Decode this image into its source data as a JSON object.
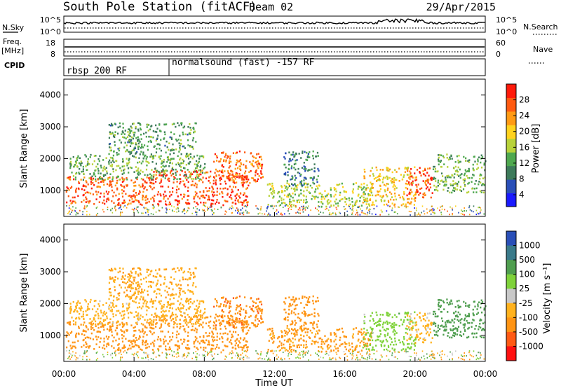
{
  "header": {
    "station": "South Pole Station (fitACF)",
    "beam": "Beam 02",
    "date": "29/Apr/2015"
  },
  "panels": {
    "nsky_label": "N.Sky",
    "nsearch_label": "N.Search",
    "nsky_ticks": [
      "10^5",
      "10^0"
    ],
    "nsearch_ticks": [
      "10^5",
      "10^0"
    ],
    "freq_label_1": "Freq.",
    "freq_label_2": "[MHz]",
    "freq_ticks": [
      "18",
      "8"
    ],
    "nave_label": "Nave",
    "nave_ticks": [
      "60",
      "0"
    ],
    "cpid_label": "CPID",
    "cpid_segments": [
      {
        "label": "rbsp 200 RF",
        "start_h": 0
      },
      {
        "label": "normalsound (fast) -157 RF",
        "start_h": 6
      }
    ]
  },
  "axes": {
    "ylabel": "Slant Range [km]",
    "xlabel": "Time UT",
    "yticks": [
      "1000",
      "2000",
      "3000",
      "4000"
    ],
    "xticks": [
      "00:00",
      "04:00",
      "08:00",
      "12:00",
      "16:00",
      "20:00",
      "00:00"
    ]
  },
  "colors": {
    "power": [
      "#1a1aff",
      "#2a4fb8",
      "#3d7a5a",
      "#4fa84f",
      "#b8d23a",
      "#ffd21e",
      "#ff9a14",
      "#ff5a10",
      "#ff1a0a"
    ],
    "velocity": [
      "#ff1010",
      "#ff5a14",
      "#ff9414",
      "#ffb21e",
      "#c8c8c8",
      "#7fd23a",
      "#4f9e4f",
      "#3a7a8a",
      "#2a4fb8"
    ]
  },
  "chart_data": {
    "type": "heatmap",
    "x_range_hours": [
      0,
      24
    ],
    "y_range_km": [
      180,
      4500
    ],
    "power_colorbar": {
      "label": "Power [dB]",
      "ticks": [
        "4",
        "8",
        "12",
        "16",
        "20",
        "24",
        "28"
      ]
    },
    "velocity_colorbar": {
      "label": "Velocity [m s⁻¹]",
      "ticks": [
        "1000",
        "500",
        "100",
        "25",
        "-25",
        "-100",
        "-500",
        "-1000"
      ]
    },
    "regions": [
      {
        "t0": 0.1,
        "t1": 5.0,
        "r0": 500,
        "r1": 1400,
        "power": 26,
        "velocity": -300
      },
      {
        "t0": 5.0,
        "t1": 10.5,
        "r0": 500,
        "r1": 1600,
        "power": 27,
        "velocity": -250
      },
      {
        "t0": 8.5,
        "t1": 11.3,
        "r0": 1200,
        "r1": 2200,
        "power": 25,
        "velocity": -400
      },
      {
        "t0": 0.3,
        "t1": 8.0,
        "r0": 1300,
        "r1": 2100,
        "power": 14,
        "velocity": -60
      },
      {
        "t0": 2.5,
        "t1": 7.5,
        "r0": 2100,
        "r1": 3100,
        "power": 12,
        "velocity": -90
      },
      {
        "t0": 11.5,
        "t1": 17.5,
        "r0": 450,
        "r1": 1200,
        "power": 16,
        "velocity": -120
      },
      {
        "t0": 17.0,
        "t1": 20.0,
        "r0": 500,
        "r1": 1700,
        "power": 20,
        "velocity": 60
      },
      {
        "t0": 19.5,
        "t1": 21.0,
        "r0": 700,
        "r1": 1700,
        "power": 27,
        "velocity": -40
      },
      {
        "t0": 21.0,
        "t1": 24.0,
        "r0": 900,
        "r1": 2100,
        "power": 14,
        "velocity": 300
      },
      {
        "t0": 12.5,
        "t1": 14.5,
        "r0": 1100,
        "r1": 2200,
        "power": 10,
        "velocity": -200
      }
    ]
  }
}
